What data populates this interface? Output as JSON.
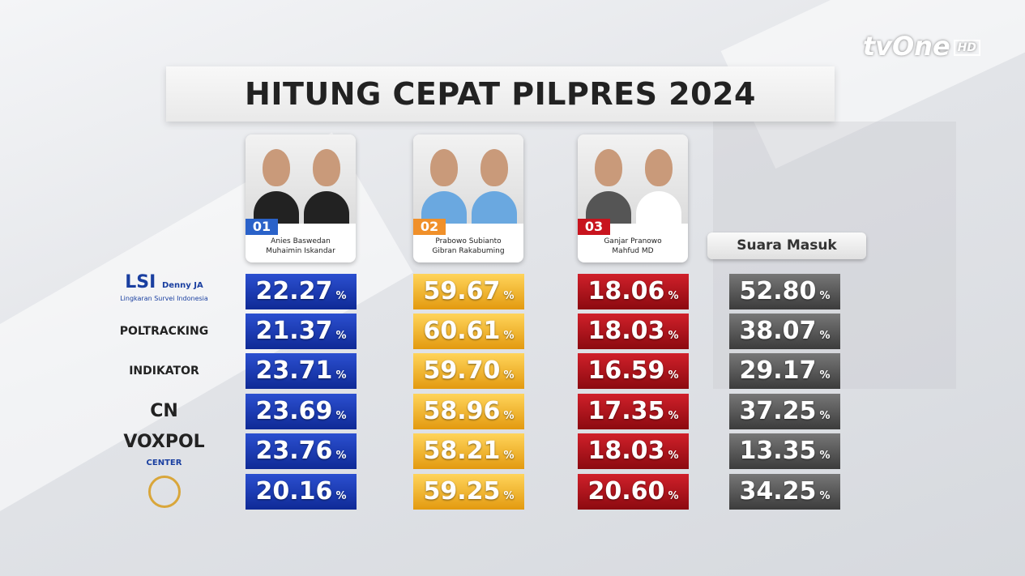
{
  "channel": "tvOne",
  "channel_badge": "HD",
  "title": "HITUNG CEPAT PILPRES 2024",
  "candidates": [
    {
      "number": "01",
      "names": [
        "Anies Baswedan",
        "Muhaimin Iskandar"
      ]
    },
    {
      "number": "02",
      "names": [
        "Prabowo Subianto",
        "Gibran Rakabuming"
      ]
    },
    {
      "number": "03",
      "names": [
        "Ganjar Pranowo",
        "Mahfud MD"
      ]
    }
  ],
  "turnout_header": "Suara Masuk",
  "unit": "%",
  "rows": [
    {
      "institution": "LSI",
      "sub": "Denny JA",
      "caption": "Lingkaran Survei Indonesia",
      "values": [
        "22.27",
        "59.67",
        "18.06",
        "52.80"
      ]
    },
    {
      "institution": "POLTRACKING",
      "values": [
        "21.37",
        "60.61",
        "18.03",
        "38.07"
      ]
    },
    {
      "institution": "INDIKATOR",
      "values": [
        "23.71",
        "59.70",
        "16.59",
        "29.17"
      ]
    },
    {
      "institution": "CN",
      "values": [
        "23.69",
        "58.96",
        "17.35",
        "37.25"
      ]
    },
    {
      "institution": "VOXPOL",
      "sub": "CENTER",
      "values": [
        "23.76",
        "58.21",
        "18.03",
        "13.35"
      ]
    },
    {
      "values": [
        "20.16",
        "59.25",
        "20.60",
        "34.25"
      ]
    }
  ]
}
